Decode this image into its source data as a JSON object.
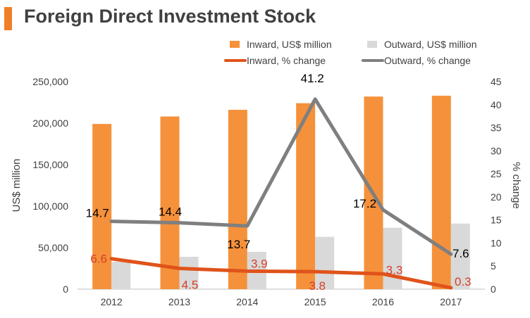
{
  "title": "Foreign Direct Investment Stock",
  "colors": {
    "accent": "#f07f2a",
    "inward_bar": "#f5913a",
    "outward_bar": "#d9d9d9",
    "inward_line": "#e0531b",
    "outward_line": "#7f7f7f",
    "inward_label": "#d73f2a",
    "outward_label": "#000000"
  },
  "chart_data": {
    "type": "bar",
    "title": "Foreign Direct Investment Stock",
    "categories": [
      "2012",
      "2013",
      "2014",
      "2015",
      "2016",
      "2017"
    ],
    "ylabel": "US$ million",
    "y2label": "% change",
    "ylim": [
      0,
      250000
    ],
    "y2lim": [
      0,
      45
    ],
    "yticks": [
      "0",
      "50,000",
      "100,000",
      "150,000",
      "200,000",
      "250,000"
    ],
    "y2ticks": [
      "0",
      "5",
      "10",
      "15",
      "20",
      "25",
      "30",
      "35",
      "40",
      "45"
    ],
    "series": [
      {
        "name": "Inward, US$ million",
        "type": "bar",
        "axis": "left",
        "values": [
          199000,
          208000,
          216000,
          224000,
          232000,
          233000
        ]
      },
      {
        "name": "Outward, US$ million",
        "type": "bar",
        "axis": "left",
        "values": [
          33000,
          39000,
          45000,
          63000,
          74000,
          79000
        ]
      },
      {
        "name": "Inward, % change",
        "type": "line",
        "axis": "right",
        "values": [
          6.6,
          4.5,
          3.9,
          3.8,
          3.3,
          0.3
        ],
        "labels": [
          "6.6",
          "4.5",
          "3.9",
          "3.8",
          "3.3",
          "0.3"
        ]
      },
      {
        "name": "Outward, % change",
        "type": "line",
        "axis": "right",
        "values": [
          14.7,
          14.4,
          13.7,
          41.2,
          17.2,
          7.6
        ],
        "labels": [
          "14.7",
          "14.4",
          "13.7",
          "41.2",
          "17.2",
          "7.6"
        ]
      }
    ],
    "legend": "top-right",
    "grid": false
  }
}
